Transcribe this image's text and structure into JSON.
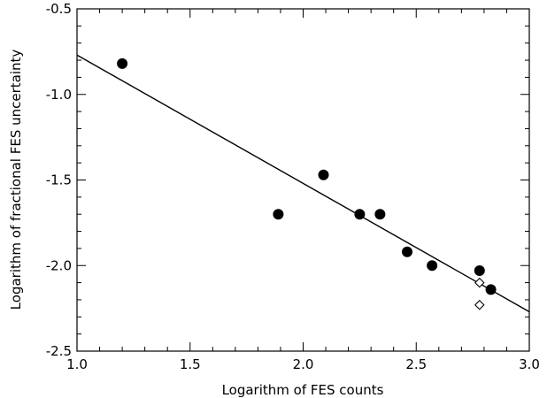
{
  "chart_data": {
    "type": "scatter",
    "xlabel": "Logarithm of FES counts",
    "ylabel": "Logarithm of fractional FES uncertainty",
    "xlim": [
      1.0,
      3.0
    ],
    "ylim": [
      -2.5,
      -0.5
    ],
    "xticks": [
      1.0,
      1.5,
      2.0,
      2.5,
      3.0
    ],
    "xtick_labels": [
      "1.0",
      "1.5",
      "2.0",
      "2.5",
      "3.0"
    ],
    "yticks": [
      -2.5,
      -2.0,
      -1.5,
      -1.0,
      -0.5
    ],
    "ytick_labels": [
      "-2.5",
      "-2.0",
      "-1.5",
      "-1.0",
      "-0.5"
    ],
    "grid": false,
    "series": [
      {
        "marker": "filled-circle",
        "color": "#000000",
        "points": [
          {
            "x": 1.2,
            "y": -0.82
          },
          {
            "x": 1.89,
            "y": -1.7
          },
          {
            "x": 2.09,
            "y": -1.47
          },
          {
            "x": 2.25,
            "y": -1.7
          },
          {
            "x": 2.34,
            "y": -1.7
          },
          {
            "x": 2.46,
            "y": -1.92
          },
          {
            "x": 2.57,
            "y": -2.0
          },
          {
            "x": 2.78,
            "y": -2.03
          },
          {
            "x": 2.83,
            "y": -2.14
          }
        ]
      },
      {
        "marker": "open-diamond",
        "color": "#000000",
        "points": [
          {
            "x": 2.78,
            "y": -2.1
          },
          {
            "x": 2.78,
            "y": -2.23
          }
        ]
      }
    ],
    "fit_line": {
      "x": [
        1.0,
        3.0
      ],
      "y": [
        -0.77,
        -2.27
      ],
      "color": "#000000"
    }
  }
}
